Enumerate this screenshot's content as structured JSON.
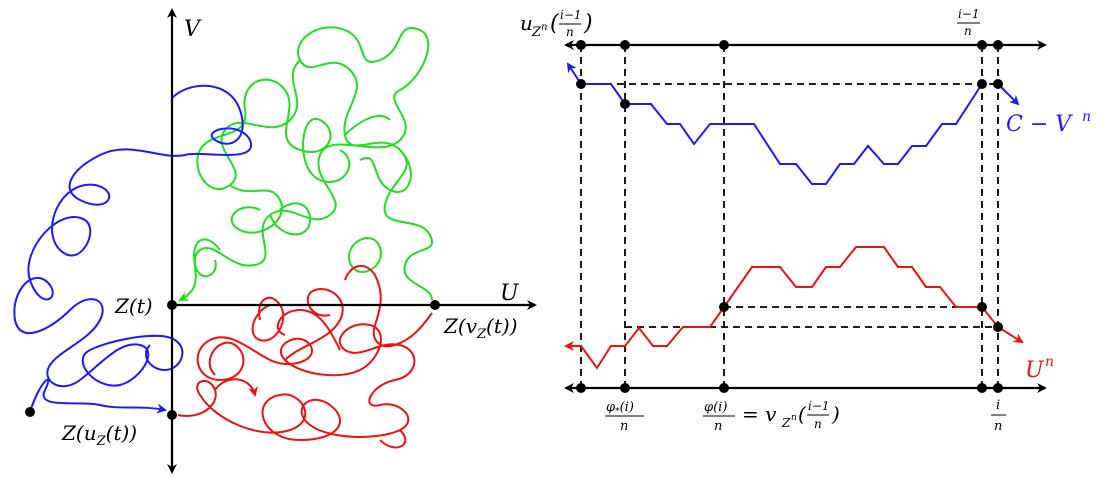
{
  "colors": {
    "blue": "#1a1aff",
    "green": "#22dd22",
    "red": "#ee1111",
    "black": "#000000"
  },
  "left_panel": {
    "axis_v": "V",
    "axis_u": "U",
    "z_t": "Z(t)",
    "z_vz": "Z(v",
    "z_vz_sub": "Z",
    "z_vz_end": "(t))",
    "z_uz": "Z(u",
    "z_uz_sub": "Z",
    "z_uz_end": "(t))"
  },
  "right_panel": {
    "top_left_base": "u",
    "top_left_sub": "Z",
    "top_left_sup": "n",
    "top_left_frac_num": "i−1",
    "top_left_frac_den": "n",
    "top_right_frac_num": "i−1",
    "top_right_frac_den": "n",
    "label_c_minus_v": "C − V",
    "label_c_minus_v_sup": "n",
    "label_u": "U",
    "label_u_sup": "n",
    "bottom_phi_star_num": "φ",
    "bottom_phi_star_sub": "*",
    "bottom_phi_star_arg": "(i)",
    "bottom_phi_star_den": "n",
    "bottom_phi_num": "φ(i)",
    "bottom_phi_den": "n",
    "bottom_eq": "= v",
    "bottom_eq_sub": "Z",
    "bottom_eq_sup": "n",
    "bottom_eq_frac_num": "i−1",
    "bottom_eq_frac_den": "n",
    "bottom_i_num": "i",
    "bottom_i_den": "n"
  }
}
